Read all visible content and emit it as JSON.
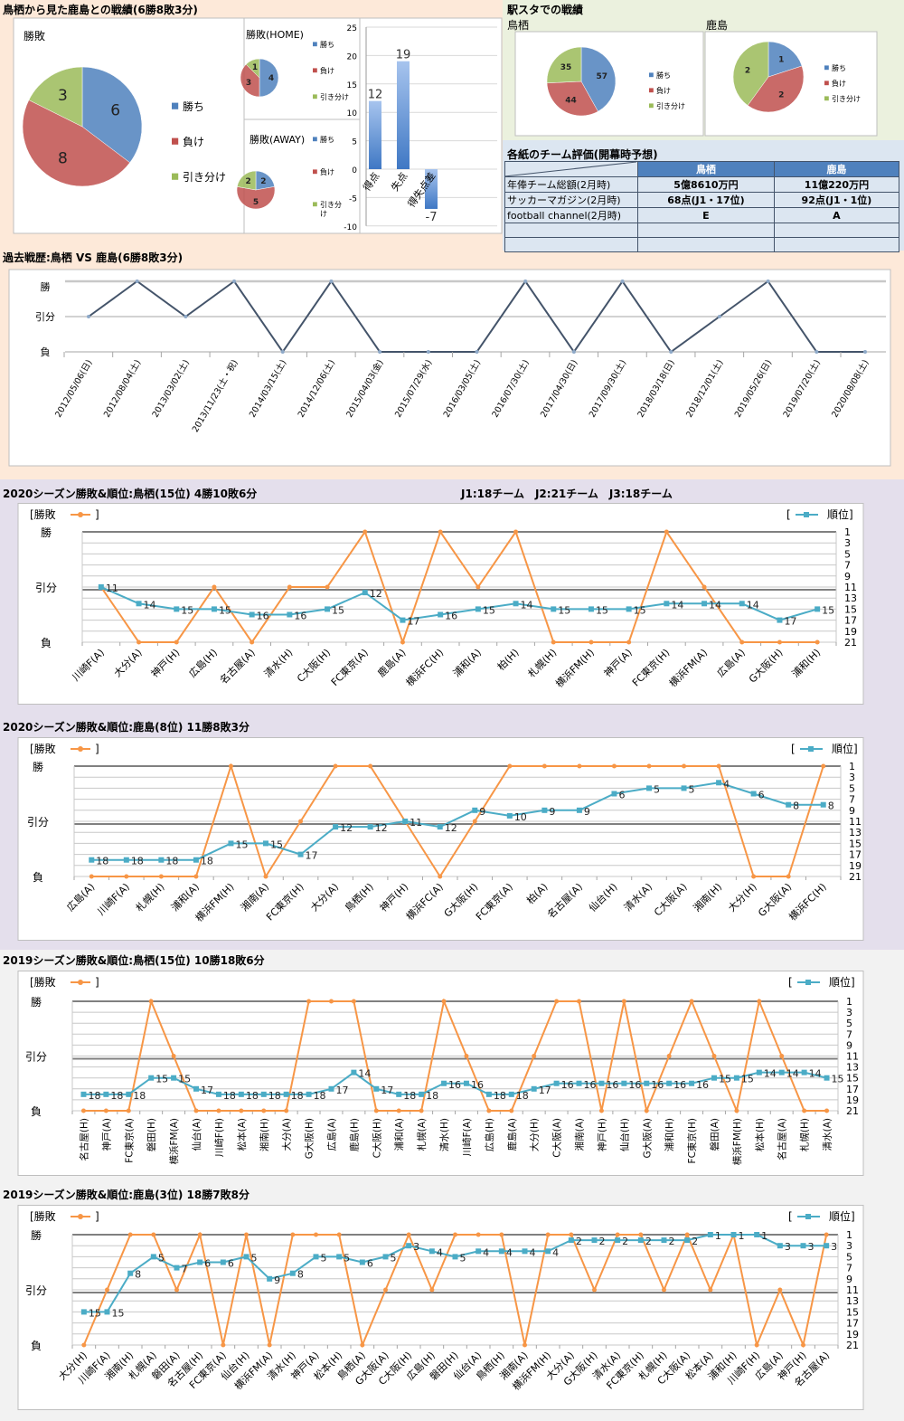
{
  "colors": {
    "win": "#4f81bd",
    "loss": "#c0504d",
    "draw": "#9bbb59",
    "result_line": "#f79646",
    "rank_line": "#4bacc6",
    "history_line": "#44546a"
  },
  "legend": {
    "win": "勝ち",
    "loss": "負け",
    "draw": "引き分け",
    "draw_wrapped": [
      "引き分",
      "け"
    ]
  },
  "axis_labels": {
    "win": "勝",
    "draw": "引分",
    "loss": "負"
  },
  "series_legend": {
    "result": "勝敗",
    "rank": "順位",
    "open": "[",
    "close": "]"
  },
  "head_to_head": {
    "title": "鳥栖から見た鹿島との戦績(6勝8敗3分)",
    "overall": {
      "title": "勝敗",
      "values": [
        6,
        8,
        3
      ]
    },
    "home": {
      "title": "勝敗(HOME)",
      "values": [
        4,
        3,
        1
      ]
    },
    "away": {
      "title": "勝敗(AWAY)",
      "values": [
        2,
        5,
        2
      ]
    },
    "goals": {
      "categories": [
        "得点",
        "失点",
        "得失点差"
      ],
      "values": [
        12,
        19,
        -7
      ],
      "ylim": [
        -10,
        25
      ],
      "ticks": [
        25,
        20,
        15,
        10,
        5,
        0,
        -5,
        -10
      ]
    }
  },
  "stadium": {
    "title": "駅スタでの戦績",
    "tosu": {
      "label": "鳥栖",
      "values": [
        57,
        44,
        35
      ]
    },
    "kashima": {
      "label": "鹿島",
      "values": [
        1,
        2,
        2
      ]
    }
  },
  "evaluation": {
    "title": "各紙のチーム評価(開幕時予想)",
    "columns": [
      "鳥栖",
      "鹿島"
    ],
    "rows": [
      {
        "label": "年俸チーム総額(2月時)",
        "tosu": "5億8610万円",
        "kashima": "11億220万円"
      },
      {
        "label": "サッカーマガジン(2月時)",
        "tosu": "68点(J1・17位)",
        "kashima": "92点(J1・1位)"
      },
      {
        "label": "football channel(2月時)",
        "tosu": "E",
        "kashima": "A"
      },
      {
        "label": "",
        "tosu": "",
        "kashima": ""
      },
      {
        "label": "",
        "tosu": "",
        "kashima": ""
      }
    ]
  },
  "history": {
    "title": "過去戦歴:鳥栖 VS 鹿島(6勝8敗3分)",
    "matches": [
      {
        "date": "2012/05/06(日)",
        "r": "D"
      },
      {
        "date": "2012/08/04(土)",
        "r": "W"
      },
      {
        "date": "2013/03/02(土)",
        "r": "D"
      },
      {
        "date": "2013/11/23(土・祝)",
        "r": "W"
      },
      {
        "date": "2014/03/15(土)",
        "r": "L"
      },
      {
        "date": "2014/12/06(土)",
        "r": "W"
      },
      {
        "date": "2015/04/03(金)",
        "r": "L"
      },
      {
        "date": "2015/07/29(水)",
        "r": "L"
      },
      {
        "date": "2016/03/05(土)",
        "r": "L"
      },
      {
        "date": "2016/07/30(土)",
        "r": "W"
      },
      {
        "date": "2017/04/30(日)",
        "r": "L"
      },
      {
        "date": "2017/09/30(土)",
        "r": "W"
      },
      {
        "date": "2018/03/18(日)",
        "r": "L"
      },
      {
        "date": "2018/12/01(土)",
        "r": "D"
      },
      {
        "date": "2019/05/26(日)",
        "r": "W"
      },
      {
        "date": "2019/07/20(土)",
        "r": "L"
      },
      {
        "date": "2020/08/08(土)",
        "r": "L"
      }
    ]
  },
  "league_note": "J1:18チーム　J2:21チーム　J3:18チーム",
  "chart_data": [
    {
      "type": "line",
      "title": "2020シーズン勝敗&順位:鳥栖(15位) 4勝10敗6分",
      "rank_ticks": [
        1,
        3,
        5,
        7,
        9,
        11,
        13,
        15,
        17,
        19,
        21
      ],
      "matches": [
        {
          "o": "川崎F(A)",
          "r": "D",
          "rank": 11
        },
        {
          "o": "大分(A)",
          "r": "L",
          "rank": 14
        },
        {
          "o": "神戸(H)",
          "r": "L",
          "rank": 15
        },
        {
          "o": "広島(H)",
          "r": "D",
          "rank": 15
        },
        {
          "o": "名古屋(A)",
          "r": "L",
          "rank": 16
        },
        {
          "o": "清水(H)",
          "r": "D",
          "rank": 16
        },
        {
          "o": "C大阪(H)",
          "r": "D",
          "rank": 15
        },
        {
          "o": "FC東京(A)",
          "r": "W",
          "rank": 12
        },
        {
          "o": "鹿島(A)",
          "r": "L",
          "rank": 17
        },
        {
          "o": "横浜FC(H)",
          "r": "W",
          "rank": 16
        },
        {
          "o": "浦和(A)",
          "r": "D",
          "rank": 15
        },
        {
          "o": "柏(H)",
          "r": "W",
          "rank": 14
        },
        {
          "o": "札幌(H)",
          "r": "L",
          "rank": 15
        },
        {
          "o": "横浜FM(H)",
          "r": "L",
          "rank": 15
        },
        {
          "o": "神戸(A)",
          "r": "L",
          "rank": 15
        },
        {
          "o": "FC東京(H)",
          "r": "W",
          "rank": 14
        },
        {
          "o": "横浜FM(A)",
          "r": "D",
          "rank": 14
        },
        {
          "o": "広島(A)",
          "r": "L",
          "rank": 14
        },
        {
          "o": "G大阪(H)",
          "r": "L",
          "rank": 17
        },
        {
          "o": "浦和(H)",
          "r": "L",
          "rank": 15
        }
      ]
    },
    {
      "type": "line",
      "title": "2020シーズン勝敗&順位:鹿島(8位) 11勝8敗3分",
      "rank_ticks": [
        1,
        3,
        5,
        7,
        9,
        11,
        13,
        15,
        17,
        19,
        21
      ],
      "matches": [
        {
          "o": "広島(A)",
          "r": "L",
          "rank": 18
        },
        {
          "o": "川崎F(A)",
          "r": "L",
          "rank": 18
        },
        {
          "o": "札幌(H)",
          "r": "L",
          "rank": 18
        },
        {
          "o": "浦和(A)",
          "r": "L",
          "rank": 18
        },
        {
          "o": "横浜FM(H)",
          "r": "W",
          "rank": 15
        },
        {
          "o": "湘南(A)",
          "r": "L",
          "rank": 15
        },
        {
          "o": "FC東京(H)",
          "r": "D",
          "rank": 17
        },
        {
          "o": "大分(A)",
          "r": "W",
          "rank": 12
        },
        {
          "o": "鳥栖(H)",
          "r": "W",
          "rank": 12
        },
        {
          "o": "神戸(H)",
          "r": "D",
          "rank": 11
        },
        {
          "o": "横浜FC(A)",
          "r": "L",
          "rank": 12
        },
        {
          "o": "G大阪(H)",
          "r": "D",
          "rank": 9
        },
        {
          "o": "FC東京(A)",
          "r": "W",
          "rank": 10
        },
        {
          "o": "柏(A)",
          "r": "W",
          "rank": 9
        },
        {
          "o": "名古屋(A)",
          "r": "W",
          "rank": 9
        },
        {
          "o": "仙台(H)",
          "r": "W",
          "rank": 6
        },
        {
          "o": "清水(A)",
          "r": "W",
          "rank": 5
        },
        {
          "o": "C大阪(A)",
          "r": "W",
          "rank": 5
        },
        {
          "o": "湘南(H)",
          "r": "W",
          "rank": 4
        },
        {
          "o": "大分(H)",
          "r": "L",
          "rank": 6
        },
        {
          "o": "G大阪(A)",
          "r": "L",
          "rank": 8
        },
        {
          "o": "横浜FC(H)",
          "r": "W",
          "rank": 8
        }
      ]
    },
    {
      "type": "line",
      "title": "2019シーズン勝敗&順位:鳥栖(15位) 10勝18敗6分",
      "rank_ticks": [
        1,
        3,
        5,
        7,
        9,
        11,
        13,
        15,
        17,
        19,
        21
      ],
      "matches": [
        {
          "o": "名古屋(H)",
          "r": "L",
          "rank": 18
        },
        {
          "o": "神戸(A)",
          "r": "L",
          "rank": 18
        },
        {
          "o": "FC東京(A)",
          "r": "L",
          "rank": 18
        },
        {
          "o": "磐田(H)",
          "r": "W",
          "rank": 15
        },
        {
          "o": "横浜FM(A)",
          "r": "D",
          "rank": 15
        },
        {
          "o": "仙台(A)",
          "r": "L",
          "rank": 17
        },
        {
          "o": "川崎F(H)",
          "r": "L",
          "rank": 18
        },
        {
          "o": "松本(A)",
          "r": "L",
          "rank": 18
        },
        {
          "o": "湘南(H)",
          "r": "L",
          "rank": 18
        },
        {
          "o": "大分(A)",
          "r": "L",
          "rank": 18
        },
        {
          "o": "G大阪(H)",
          "r": "W",
          "rank": 18
        },
        {
          "o": "広島(A)",
          "r": "W",
          "rank": 17
        },
        {
          "o": "鹿島(H)",
          "r": "W",
          "rank": 14
        },
        {
          "o": "C大阪(H)",
          "r": "L",
          "rank": 17
        },
        {
          "o": "浦和(A)",
          "r": "L",
          "rank": 18
        },
        {
          "o": "札幌(A)",
          "r": "L",
          "rank": 18
        },
        {
          "o": "清水(H)",
          "r": "W",
          "rank": 16
        },
        {
          "o": "川崎F(A)",
          "r": "D",
          "rank": 16
        },
        {
          "o": "広島(H)",
          "r": "L",
          "rank": 18
        },
        {
          "o": "鹿島(A)",
          "r": "L",
          "rank": 18
        },
        {
          "o": "大分(H)",
          "r": "D",
          "rank": 17
        },
        {
          "o": "C大阪(A)",
          "r": "W",
          "rank": 16
        },
        {
          "o": "湘南(A)",
          "r": "W",
          "rank": 16
        },
        {
          "o": "神戸(H)",
          "r": "L",
          "rank": 16
        },
        {
          "o": "仙台(H)",
          "r": "W",
          "rank": 16
        },
        {
          "o": "G大阪(A)",
          "r": "L",
          "rank": 16
        },
        {
          "o": "浦和(H)",
          "r": "D",
          "rank": 16
        },
        {
          "o": "FC東京(H)",
          "r": "W",
          "rank": 16
        },
        {
          "o": "磐田(A)",
          "r": "D",
          "rank": 15
        },
        {
          "o": "横浜FM(H)",
          "r": "L",
          "rank": 15
        },
        {
          "o": "松本(H)",
          "r": "W",
          "rank": 14
        },
        {
          "o": "名古屋(A)",
          "r": "D",
          "rank": 14
        },
        {
          "o": "札幌(H)",
          "r": "L",
          "rank": 14
        },
        {
          "o": "清水(A)",
          "r": "L",
          "rank": 15
        }
      ]
    },
    {
      "type": "line",
      "title": "2019シーズン勝敗&順位:鹿島(3位) 18勝7敗8分",
      "rank_ticks": [
        1,
        3,
        5,
        7,
        9,
        11,
        13,
        15,
        17,
        19,
        21
      ],
      "matches": [
        {
          "o": "大分(H)",
          "r": "L",
          "rank": 15
        },
        {
          "o": "川崎F(A)",
          "r": "D",
          "rank": 15
        },
        {
          "o": "湘南(H)",
          "r": "W",
          "rank": 8
        },
        {
          "o": "札幌(A)",
          "r": "W",
          "rank": 5
        },
        {
          "o": "磐田(A)",
          "r": "D",
          "rank": 7
        },
        {
          "o": "名古屋(H)",
          "r": "W",
          "rank": 6
        },
        {
          "o": "FC東京(A)",
          "r": "L",
          "rank": 6
        },
        {
          "o": "仙台(H)",
          "r": "W",
          "rank": 5
        },
        {
          "o": "横浜FM(A)",
          "r": "L",
          "rank": 9
        },
        {
          "o": "清水(H)",
          "r": "W",
          "rank": 8
        },
        {
          "o": "神戸(A)",
          "r": "W",
          "rank": 5
        },
        {
          "o": "松本(H)",
          "r": "W",
          "rank": 5
        },
        {
          "o": "鳥栖(A)",
          "r": "L",
          "rank": 6
        },
        {
          "o": "G大阪(A)",
          "r": "D",
          "rank": 5
        },
        {
          "o": "C大阪(H)",
          "r": "W",
          "rank": 3
        },
        {
          "o": "広島(H)",
          "r": "D",
          "rank": 4
        },
        {
          "o": "磐田(H)",
          "r": "W",
          "rank": 5
        },
        {
          "o": "仙台(A)",
          "r": "W",
          "rank": 4
        },
        {
          "o": "鳥栖(H)",
          "r": "W",
          "rank": 4
        },
        {
          "o": "湘南(A)",
          "r": "L",
          "rank": 4
        },
        {
          "o": "横浜FM(H)",
          "r": "W",
          "rank": 4
        },
        {
          "o": "大分(A)",
          "r": "W",
          "rank": 2
        },
        {
          "o": "G大阪(H)",
          "r": "D",
          "rank": 2
        },
        {
          "o": "清水(A)",
          "r": "W",
          "rank": 2
        },
        {
          "o": "FC東京(H)",
          "r": "W",
          "rank": 2
        },
        {
          "o": "札幌(H)",
          "r": "D",
          "rank": 2
        },
        {
          "o": "C大阪(A)",
          "r": "W",
          "rank": 2
        },
        {
          "o": "松本(A)",
          "r": "D",
          "rank": 1
        },
        {
          "o": "浦和(H)",
          "r": "W",
          "rank": 1
        },
        {
          "o": "川崎F(H)",
          "r": "L",
          "rank": 1
        },
        {
          "o": "広島(A)",
          "r": "D",
          "rank": 3
        },
        {
          "o": "神戸(H)",
          "r": "L",
          "rank": 3
        },
        {
          "o": "名古屋(A)",
          "r": "W",
          "rank": 3
        }
      ]
    }
  ]
}
